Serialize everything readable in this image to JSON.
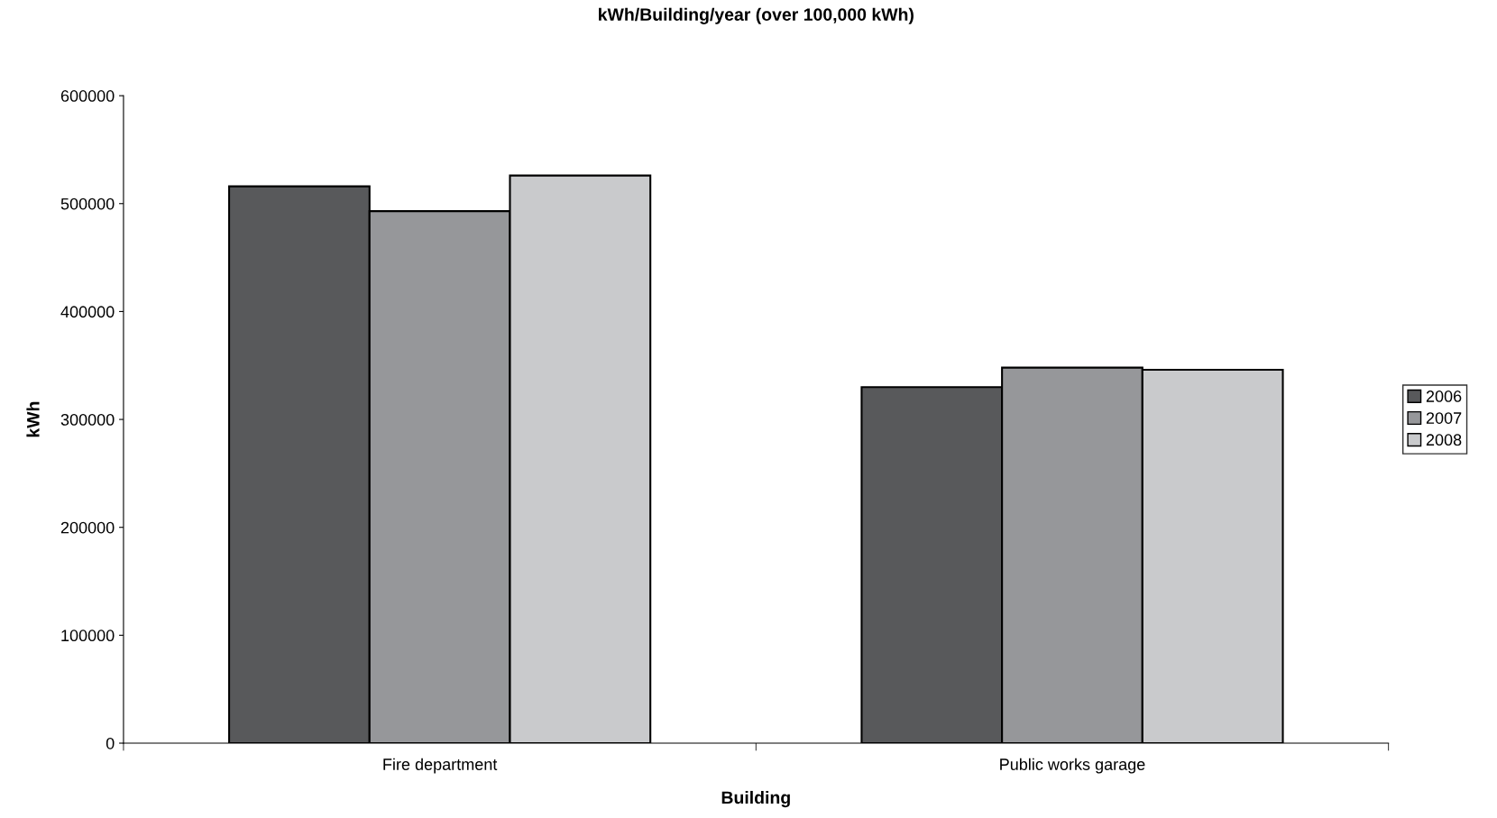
{
  "chart_data": {
    "type": "bar",
    "title": "kWh/Building/year (over 100,000 kWh)",
    "xlabel": "Building",
    "ylabel": "kWh",
    "categories": [
      "Fire department",
      "Public works garage"
    ],
    "series": [
      {
        "name": "2006",
        "color": "#58595b",
        "values": [
          516000,
          330000
        ]
      },
      {
        "name": "2007",
        "color": "#96979a",
        "values": [
          493000,
          348000
        ]
      },
      {
        "name": "2008",
        "color": "#c9cacc",
        "values": [
          526000,
          346000
        ]
      }
    ],
    "ylim": [
      0,
      600000
    ],
    "yticks": [
      0,
      100000,
      200000,
      300000,
      400000,
      500000,
      600000
    ],
    "grid": false,
    "legend": "right"
  }
}
